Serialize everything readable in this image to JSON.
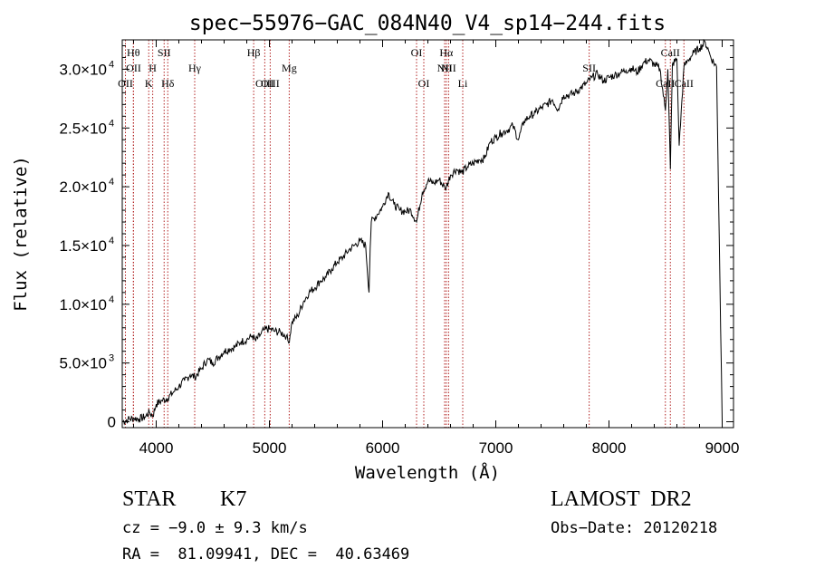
{
  "chart_data": {
    "type": "line",
    "title": "spec−55976−GAC_084N40_V4_sp14−244.fits",
    "xlabel": "Wavelength (Å)",
    "ylabel": "Flux (relative)",
    "xlim": [
      3700,
      9100
    ],
    "ylim": [
      -500,
      32500
    ],
    "grid": false,
    "x_ticks": [
      {
        "value": 4000,
        "label": "4000"
      },
      {
        "value": 5000,
        "label": "5000"
      },
      {
        "value": 6000,
        "label": "6000"
      },
      {
        "value": 7000,
        "label": "7000"
      },
      {
        "value": 8000,
        "label": "8000"
      },
      {
        "value": 9000,
        "label": "9000"
      }
    ],
    "y_ticks": [
      {
        "value": 0,
        "mant": "0",
        "exp": ""
      },
      {
        "value": 5000,
        "mant": "5.0×10",
        "exp": "3"
      },
      {
        "value": 10000,
        "mant": "1.0×10",
        "exp": "4"
      },
      {
        "value": 15000,
        "mant": "1.5×10",
        "exp": "4"
      },
      {
        "value": 20000,
        "mant": "2.0×10",
        "exp": "4"
      },
      {
        "value": 25000,
        "mant": "2.5×10",
        "exp": "4"
      },
      {
        "value": 30000,
        "mant": "3.0×10",
        "exp": "4"
      }
    ],
    "series": [
      {
        "x": [
          3700,
          3750,
          3800,
          3850,
          3900,
          3940,
          3970,
          4000,
          4050,
          4100,
          4150,
          4200,
          4250,
          4300,
          4340,
          4400,
          4450,
          4500,
          4550,
          4600,
          4650,
          4700,
          4750,
          4800,
          4850,
          4880,
          4920,
          4950,
          5000,
          5050,
          5100,
          5150,
          5170,
          5200,
          5250,
          5300,
          5350,
          5400,
          5450,
          5500,
          5550,
          5600,
          5650,
          5700,
          5750,
          5800,
          5850,
          5880,
          5890,
          5900,
          5950,
          6000,
          6050,
          6100,
          6150,
          6200,
          6250,
          6300,
          6350,
          6400,
          6450,
          6500,
          6550,
          6563,
          6600,
          6650,
          6700,
          6750,
          6800,
          6850,
          6900,
          6950,
          7000,
          7050,
          7100,
          7150,
          7200,
          7250,
          7300,
          7350,
          7400,
          7450,
          7500,
          7550,
          7600,
          7650,
          7700,
          7750,
          7800,
          7850,
          7900,
          7950,
          8000,
          8050,
          8100,
          8150,
          8200,
          8250,
          8300,
          8350,
          8400,
          8450,
          8498,
          8520,
          8542,
          8560,
          8600,
          8620,
          8662,
          8700,
          8750,
          8800,
          8850,
          8880,
          8900,
          8950,
          8980,
          9000
        ],
        "y": [
          0,
          200,
          300,
          250,
          400,
          800,
          500,
          1500,
          1800,
          2000,
          2500,
          3000,
          3500,
          4000,
          3800,
          4500,
          5300,
          5000,
          5500,
          6000,
          6200,
          6400,
          6800,
          7000,
          7300,
          6900,
          7400,
          7800,
          7900,
          7700,
          7600,
          7300,
          6700,
          8500,
          9000,
          10200,
          11000,
          11400,
          12000,
          12300,
          13000,
          13600,
          14000,
          14600,
          15000,
          15400,
          15000,
          11000,
          14800,
          17000,
          17600,
          18300,
          19500,
          18500,
          18000,
          17900,
          18000,
          17000,
          19500,
          20500,
          20300,
          20600,
          19900,
          20000,
          21000,
          21500,
          21200,
          21700,
          22000,
          22300,
          22400,
          23800,
          24200,
          24600,
          24800,
          25200,
          24000,
          25600,
          26000,
          26300,
          26700,
          27000,
          27400,
          26600,
          27800,
          27800,
          28000,
          28400,
          28800,
          29300,
          29600,
          29000,
          29300,
          29500,
          29700,
          29900,
          30100,
          29700,
          30500,
          30800,
          30400,
          30000,
          26500,
          30000,
          21500,
          30400,
          30900,
          23500,
          30200,
          30800,
          31400,
          31800,
          32300,
          31600,
          31000,
          30200,
          12000,
          0
        ]
      }
    ],
    "line_markers": [
      {
        "x": 3728,
        "label": "OII",
        "row": 3
      },
      {
        "x": 3798,
        "label": "Hθ",
        "row": 1
      },
      {
        "x": 3800,
        "label": "OII",
        "row": 2
      },
      {
        "x": 3934,
        "label": "K",
        "row": 3
      },
      {
        "x": 3969,
        "label": "H",
        "row": 2
      },
      {
        "x": 4070,
        "label": "SII",
        "row": 1
      },
      {
        "x": 4102,
        "label": "Hδ",
        "row": 3
      },
      {
        "x": 4340,
        "label": "Hγ",
        "row": 2
      },
      {
        "x": 4861,
        "label": "Hβ",
        "row": 1
      },
      {
        "x": 4959,
        "label": "OIII",
        "row": 3
      },
      {
        "x": 5007,
        "label": "OIII",
        "row": 3
      },
      {
        "x": 5175,
        "label": "Mg",
        "row": 2
      },
      {
        "x": 6300,
        "label": "OI",
        "row": 1
      },
      {
        "x": 6364,
        "label": "OI",
        "row": 3
      },
      {
        "x": 6548,
        "label": "NII",
        "row": 2
      },
      {
        "x": 6563,
        "label": "Hα",
        "row": 1
      },
      {
        "x": 6583,
        "label": "NII",
        "row": 2
      },
      {
        "x": 6708,
        "label": "Li",
        "row": 3
      },
      {
        "x": 7825,
        "label": "SII",
        "row": 2
      },
      {
        "x": 8498,
        "label": "CaII",
        "row": 3
      },
      {
        "x": 8542,
        "label": "CaII",
        "row": 1
      },
      {
        "x": 8662,
        "label": "CaII",
        "row": 3
      }
    ],
    "colors": {
      "spectrum": "#000000",
      "markers": "#b22222"
    }
  },
  "info": {
    "object_type": "STAR",
    "subclass": "K7",
    "survey": "LAMOST  DR2",
    "redshift": "cz = −9.0 ± 9.3 km/s",
    "obs_date": "Obs−Date: 20120218",
    "coords": "RA =  81.09941, DEC =  40.63469"
  }
}
